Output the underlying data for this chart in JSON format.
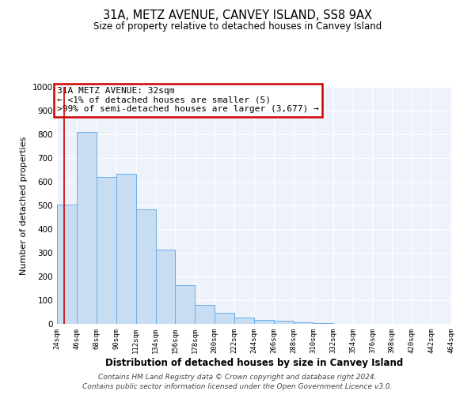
{
  "title": "31A, METZ AVENUE, CANVEY ISLAND, SS8 9AX",
  "subtitle": "Size of property relative to detached houses in Canvey Island",
  "xlabel": "Distribution of detached houses by size in Canvey Island",
  "ylabel": "Number of detached properties",
  "bin_edges": [
    24,
    46,
    68,
    90,
    112,
    134,
    156,
    178,
    200,
    222,
    244,
    266,
    288,
    310,
    332,
    354,
    376,
    398,
    420,
    442,
    464
  ],
  "bin_heights": [
    505,
    810,
    620,
    635,
    483,
    312,
    163,
    80,
    47,
    26,
    18,
    13,
    8,
    2,
    1,
    1,
    0,
    0,
    0,
    0
  ],
  "bar_color": "#c9ddf2",
  "bar_edge_color": "#6aaee8",
  "bg_color": "#ffffff",
  "plot_bg_color": "#eef2fa",
  "grid_color": "#ffffff",
  "annotation_text": "31A METZ AVENUE: 32sqm\n← <1% of detached houses are smaller (5)\n>99% of semi-detached houses are larger (3,677) →",
  "annotation_box_color": "#ffffff",
  "annotation_box_edge_color": "#cc0000",
  "property_line_x": 32,
  "ylim": [
    0,
    1000
  ],
  "yticks": [
    0,
    100,
    200,
    300,
    400,
    500,
    600,
    700,
    800,
    900,
    1000
  ],
  "xtick_labels": [
    "24sqm",
    "46sqm",
    "68sqm",
    "90sqm",
    "112sqm",
    "134sqm",
    "156sqm",
    "178sqm",
    "200sqm",
    "222sqm",
    "244sqm",
    "266sqm",
    "288sqm",
    "310sqm",
    "332sqm",
    "354sqm",
    "376sqm",
    "398sqm",
    "420sqm",
    "442sqm",
    "464sqm"
  ],
  "footer_line1": "Contains HM Land Registry data © Crown copyright and database right 2024.",
  "footer_line2": "Contains public sector information licensed under the Open Government Licence v3.0."
}
